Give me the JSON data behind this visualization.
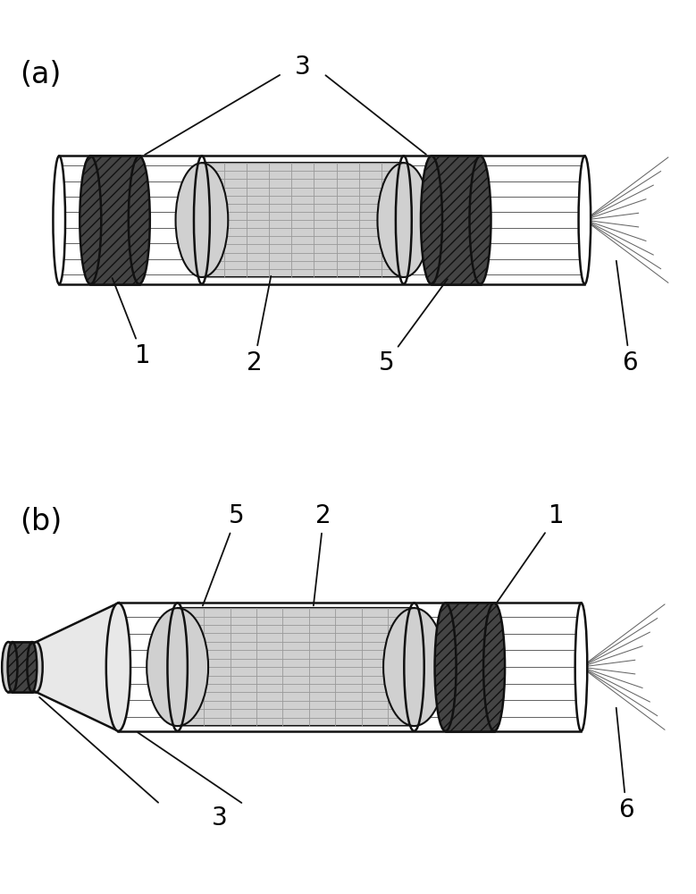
{
  "bg_color": "#ffffff",
  "dark_fill": "#444444",
  "tube_fill": "none",
  "grid_fill": "#c0c0c0",
  "wire_color": "#666666",
  "label_a": "(a)",
  "label_b": "(b)",
  "font_size_label": 20,
  "font_size_sub": 24,
  "line_color": "#111111",
  "hatch_color": "#333333"
}
